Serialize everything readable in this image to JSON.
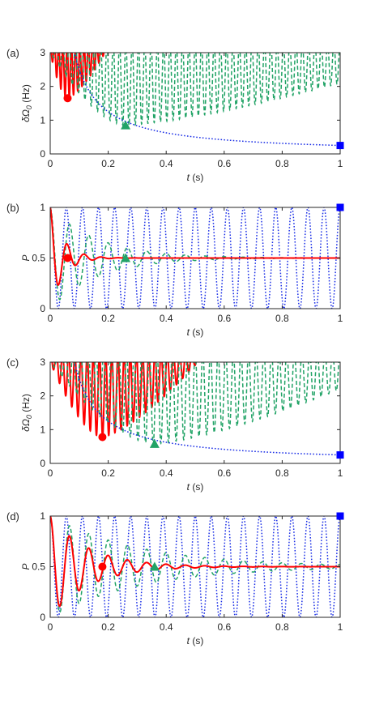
{
  "chart_data": [
    {
      "panel": "(a)",
      "type": "line",
      "xlabel_italic": "t",
      "xlabel_unit": " (s)",
      "ylabel_html": "δΩ",
      "ylabel_sub": "0",
      "ylabel_unit": " (Hz)",
      "xlim": [
        0,
        1
      ],
      "ylim": [
        0,
        3
      ],
      "xticks": [
        "0",
        "0.2",
        "0.4",
        "0.6",
        "0.8",
        "1"
      ],
      "xtick_values": [
        0,
        0.2,
        0.4,
        0.6,
        0.8,
        1
      ],
      "yticks": [
        "0",
        "1",
        "2",
        "3"
      ],
      "ytick_values": [
        0,
        1,
        2,
        3
      ],
      "grid": false,
      "series": [
        {
          "kind": "red_cycles",
          "color": "#ff0000",
          "style": "solid",
          "t_start": 0.0,
          "t_end": 0.19,
          "t_min": 0.06,
          "min_value": 1.65,
          "cycles": 13
        },
        {
          "kind": "green_cycles",
          "color": "#21a366",
          "style": "dashed",
          "t_start": 0.0,
          "t_end": 1.0,
          "t_min": 0.26,
          "min_value": 0.85,
          "end_value": 2.1,
          "cycles": 46
        },
        {
          "kind": "blue_decay",
          "color": "#1a2ee6",
          "style": "dotted",
          "start_value": 3.0,
          "end_value": 0.25
        }
      ],
      "markers": [
        {
          "shape": "circle",
          "color": "#ff0000",
          "x": 0.06,
          "y": 1.65
        },
        {
          "shape": "triangle",
          "color": "#21a366",
          "x": 0.26,
          "y": 0.85
        },
        {
          "shape": "square",
          "color": "#0000ff",
          "x": 1.0,
          "y": 0.25
        }
      ]
    },
    {
      "panel": "(b)",
      "type": "line",
      "xlabel_italic": "t",
      "xlabel_unit": " (s)",
      "ylabel_italic": "P",
      "xlim": [
        0,
        1
      ],
      "ylim": [
        0,
        1
      ],
      "xticks": [
        "0",
        "0.2",
        "0.4",
        "0.6",
        "0.8",
        "1"
      ],
      "xtick_values": [
        0,
        0.2,
        0.4,
        0.6,
        0.8,
        1
      ],
      "yticks": [
        "0",
        "0.5",
        "1"
      ],
      "ytick_values": [
        0,
        0.5,
        1
      ],
      "grid": false,
      "series": [
        {
          "kind": "osc",
          "color": "#1a2ee6",
          "style": "dotted",
          "freq_hz": 18,
          "amp0": 0.5,
          "decay": 0.0
        },
        {
          "kind": "osc",
          "color": "#21a366",
          "style": "dashed",
          "freq_hz": 15,
          "amp0": 0.5,
          "decay": 6
        },
        {
          "kind": "osc",
          "color": "#ff0000",
          "style": "solid",
          "freq_hz": 17,
          "amp0": 0.5,
          "decay": 22
        }
      ],
      "markers": [
        {
          "shape": "circle",
          "color": "#ff0000",
          "x": 0.06,
          "y": 0.5
        },
        {
          "shape": "triangle",
          "color": "#21a366",
          "x": 0.26,
          "y": 0.5
        },
        {
          "shape": "square",
          "color": "#0000ff",
          "x": 1.0,
          "y": 1.0
        }
      ]
    },
    {
      "panel": "(c)",
      "type": "line",
      "xlabel_italic": "t",
      "xlabel_unit": " (s)",
      "ylabel_html": "δΩ",
      "ylabel_sub": "0",
      "ylabel_unit": " (Hz)",
      "xlim": [
        0,
        1
      ],
      "ylim": [
        0,
        3
      ],
      "xticks": [
        "0",
        "0.2",
        "0.4",
        "0.6",
        "0.8",
        "1"
      ],
      "xtick_values": [
        0,
        0.2,
        0.4,
        0.6,
        0.8,
        1
      ],
      "yticks": [
        "0",
        "1",
        "2",
        "3"
      ],
      "ytick_values": [
        0,
        1,
        2,
        3
      ],
      "grid": false,
      "series": [
        {
          "kind": "red_cycles",
          "color": "#ff0000",
          "style": "solid",
          "t_start": 0.0,
          "t_end": 0.51,
          "t_min": 0.18,
          "min_value": 0.78,
          "cycles": 24
        },
        {
          "kind": "green_cycles",
          "color": "#21a366",
          "style": "dashed",
          "t_start": 0.0,
          "t_end": 1.0,
          "t_min": 0.36,
          "min_value": 0.58,
          "end_value": 2.2,
          "cycles": 38
        },
        {
          "kind": "blue_decay",
          "color": "#1a2ee6",
          "style": "dotted",
          "start_value": 3.0,
          "end_value": 0.25
        }
      ],
      "markers": [
        {
          "shape": "circle",
          "color": "#ff0000",
          "x": 0.18,
          "y": 0.78
        },
        {
          "shape": "triangle",
          "color": "#21a366",
          "x": 0.36,
          "y": 0.58
        },
        {
          "shape": "square",
          "color": "#0000ff",
          "x": 1.0,
          "y": 0.25
        }
      ]
    },
    {
      "panel": "(d)",
      "type": "line",
      "xlabel_italic": "t",
      "xlabel_unit": " (s)",
      "ylabel_italic": "P",
      "xlim": [
        0,
        1
      ],
      "ylim": [
        0,
        1
      ],
      "xticks": [
        "0",
        "0.2",
        "0.4",
        "0.6",
        "0.8",
        "1"
      ],
      "xtick_values": [
        0,
        0.2,
        0.4,
        0.6,
        0.8,
        1
      ],
      "yticks": [
        "0",
        "0.5",
        "1"
      ],
      "ytick_values": [
        0,
        0.5,
        1
      ],
      "grid": false,
      "series": [
        {
          "kind": "osc",
          "color": "#1a2ee6",
          "style": "dotted",
          "freq_hz": 18,
          "amp0": 0.5,
          "decay": 0.0
        },
        {
          "kind": "osc",
          "color": "#21a366",
          "style": "dashed",
          "freq_hz": 15,
          "amp0": 0.5,
          "decay": 3.2
        },
        {
          "kind": "osc",
          "color": "#ff0000",
          "style": "solid",
          "freq_hz": 15,
          "amp0": 0.5,
          "decay": 7.5
        }
      ],
      "markers": [
        {
          "shape": "circle",
          "color": "#ff0000",
          "x": 0.18,
          "y": 0.5
        },
        {
          "shape": "triangle",
          "color": "#21a366",
          "x": 0.36,
          "y": 0.5
        },
        {
          "shape": "square",
          "color": "#0000ff",
          "x": 1.0,
          "y": 1.0
        }
      ]
    }
  ]
}
